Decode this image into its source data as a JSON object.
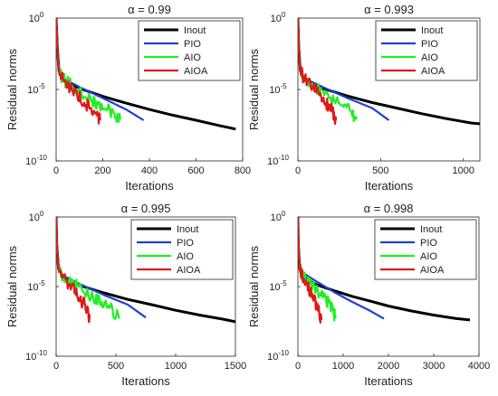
{
  "chart_data": [
    {
      "type": "line",
      "title": "α = 0.99",
      "xlabel": "Iterations",
      "ylabel": "Residual norms",
      "xlim": [
        0,
        800
      ],
      "xticks": [
        0,
        200,
        400,
        600,
        800
      ],
      "ylim_log10": [
        -10,
        0
      ],
      "yscale": "log",
      "ytick_base": "10",
      "ytick_exponents": [
        "0",
        "-5",
        "-10"
      ],
      "legend_position": "top-right",
      "series": [
        {
          "name": "Inout",
          "color": "#000000",
          "points": [
            [
              0,
              1
            ],
            [
              5,
              0.01
            ],
            [
              12,
              0.0002
            ],
            [
              30,
              5e-05
            ],
            [
              100,
              1.2e-05
            ],
            [
              200,
              3.3e-06
            ],
            [
              300,
              1.1e-06
            ],
            [
              400,
              4e-07
            ],
            [
              500,
              1.6e-07
            ],
            [
              600,
              7e-08
            ],
            [
              700,
              3e-08
            ],
            [
              770,
              1.7e-08
            ]
          ]
        },
        {
          "name": "PIO",
          "color": "#1f3fd4",
          "points": [
            [
              0,
              1
            ],
            [
              5,
              0.01
            ],
            [
              12,
              0.0002
            ],
            [
              30,
              6e-05
            ],
            [
              100,
              1.5e-05
            ],
            [
              200,
              2.5e-06
            ],
            [
              300,
              4e-07
            ],
            [
              375,
              7e-08
            ]
          ]
        },
        {
          "name": "AIO",
          "color": "#22ee22",
          "points": [
            [
              0,
              1
            ],
            [
              5,
              0.01
            ],
            [
              12,
              0.0002
            ],
            [
              30,
              5e-05
            ],
            [
              70,
              1.8e-05
            ],
            [
              110,
              4e-06
            ],
            [
              150,
              1.6e-06
            ],
            [
              180,
              9e-07
            ],
            [
              220,
              4e-07
            ],
            [
              250,
              2e-07
            ],
            [
              275,
              8e-08
            ]
          ]
        },
        {
          "name": "AIOA",
          "color": "#e01818",
          "points": [
            [
              0,
              1
            ],
            [
              5,
              0.01
            ],
            [
              12,
              0.0002
            ],
            [
              30,
              5e-05
            ],
            [
              60,
              1.5e-05
            ],
            [
              90,
              4e-06
            ],
            [
              120,
              1.2e-06
            ],
            [
              150,
              5e-07
            ],
            [
              175,
              1.5e-07
            ],
            [
              190,
              7e-08
            ]
          ]
        }
      ]
    },
    {
      "type": "line",
      "title": "α = 0.993",
      "xlabel": "Iterations",
      "ylabel": "Residual norms",
      "xlim": [
        0,
        1100
      ],
      "xticks": [
        0,
        500,
        1000
      ],
      "ylim_log10": [
        -10,
        0
      ],
      "yscale": "log",
      "ytick_base": "10",
      "ytick_exponents": [
        "0",
        "-5",
        "-10"
      ],
      "legend_position": "top-right",
      "series": [
        {
          "name": "Inout",
          "color": "#000000",
          "points": [
            [
              0,
              1
            ],
            [
              5,
              0.01
            ],
            [
              15,
              0.0002
            ],
            [
              40,
              5e-05
            ],
            [
              150,
              1.2e-05
            ],
            [
              300,
              3.5e-06
            ],
            [
              450,
              1.2e-06
            ],
            [
              600,
              5e-07
            ],
            [
              750,
              2e-07
            ],
            [
              900,
              9e-08
            ],
            [
              1050,
              4.5e-08
            ],
            [
              1100,
              4e-08
            ]
          ]
        },
        {
          "name": "PIO",
          "color": "#1f3fd4",
          "points": [
            [
              0,
              1
            ],
            [
              5,
              0.01
            ],
            [
              15,
              0.0002
            ],
            [
              40,
              6e-05
            ],
            [
              150,
              1.5e-05
            ],
            [
              300,
              2.5e-06
            ],
            [
              450,
              5e-07
            ],
            [
              550,
              7e-08
            ]
          ]
        },
        {
          "name": "AIO",
          "color": "#22ee22",
          "points": [
            [
              0,
              1
            ],
            [
              5,
              0.01
            ],
            [
              15,
              0.0002
            ],
            [
              40,
              5e-05
            ],
            [
              100,
              1.8e-05
            ],
            [
              160,
              4e-06
            ],
            [
              220,
              1.6e-06
            ],
            [
              270,
              8e-07
            ],
            [
              320,
              3e-07
            ],
            [
              355,
              8e-08
            ]
          ]
        },
        {
          "name": "AIOA",
          "color": "#e01818",
          "points": [
            [
              0,
              1
            ],
            [
              5,
              0.01
            ],
            [
              15,
              0.0002
            ],
            [
              40,
              5e-05
            ],
            [
              90,
              1.5e-05
            ],
            [
              130,
              4e-06
            ],
            [
              170,
              1.2e-06
            ],
            [
              200,
              5e-07
            ],
            [
              220,
              1.5e-07
            ],
            [
              230,
              7e-08
            ]
          ]
        }
      ]
    },
    {
      "type": "line",
      "title": "α = 0.995",
      "xlabel": "Iterations",
      "ylabel": "Residual norms",
      "xlim": [
        0,
        1500
      ],
      "xticks": [
        0,
        500,
        1000,
        1500
      ],
      "ylim_log10": [
        -10,
        0
      ],
      "yscale": "log",
      "ytick_base": "10",
      "ytick_exponents": [
        "0",
        "-5",
        "-10"
      ],
      "legend_position": "top-right",
      "series": [
        {
          "name": "Inout",
          "color": "#000000",
          "points": [
            [
              0,
              1
            ],
            [
              5,
              0.01
            ],
            [
              20,
              0.0002
            ],
            [
              60,
              5e-05
            ],
            [
              200,
              1.2e-05
            ],
            [
              400,
              3.5e-06
            ],
            [
              600,
              1.2e-06
            ],
            [
              800,
              5e-07
            ],
            [
              1000,
              2e-07
            ],
            [
              1200,
              9e-08
            ],
            [
              1400,
              4.5e-08
            ],
            [
              1500,
              3e-08
            ]
          ]
        },
        {
          "name": "PIO",
          "color": "#1f3fd4",
          "points": [
            [
              0,
              1
            ],
            [
              5,
              0.01
            ],
            [
              20,
              0.0002
            ],
            [
              60,
              6e-05
            ],
            [
              200,
              1.5e-05
            ],
            [
              400,
              2.5e-06
            ],
            [
              600,
              5e-07
            ],
            [
              750,
              6e-08
            ]
          ]
        },
        {
          "name": "AIO",
          "color": "#22ee22",
          "points": [
            [
              0,
              1
            ],
            [
              5,
              0.01
            ],
            [
              20,
              0.0002
            ],
            [
              60,
              5e-05
            ],
            [
              150,
              1.8e-05
            ],
            [
              230,
              4e-06
            ],
            [
              310,
              1.6e-06
            ],
            [
              380,
              8e-07
            ],
            [
              450,
              3e-07
            ],
            [
              530,
              5e-08
            ]
          ]
        },
        {
          "name": "AIOA",
          "color": "#e01818",
          "points": [
            [
              0,
              1
            ],
            [
              5,
              0.01
            ],
            [
              20,
              0.0002
            ],
            [
              60,
              5e-05
            ],
            [
              110,
              1.5e-05
            ],
            [
              160,
              4e-06
            ],
            [
              200,
              1.2e-06
            ],
            [
              240,
              5e-07
            ],
            [
              265,
              1.5e-07
            ],
            [
              280,
              5e-08
            ]
          ]
        }
      ]
    },
    {
      "type": "line",
      "title": "α = 0.998",
      "xlabel": "Iterations",
      "ylabel": "Residual norms",
      "xlim": [
        0,
        4000
      ],
      "xticks": [
        0,
        1000,
        2000,
        3000,
        4000
      ],
      "ylim_log10": [
        -10,
        0
      ],
      "yscale": "log",
      "ytick_base": "10",
      "ytick_exponents": [
        "0",
        "-5",
        "-10"
      ],
      "legend_position": "top-right",
      "series": [
        {
          "name": "Inout",
          "color": "#000000",
          "points": [
            [
              0,
              1
            ],
            [
              10,
              0.01
            ],
            [
              40,
              0.0002
            ],
            [
              120,
              5e-05
            ],
            [
              400,
              1.4e-05
            ],
            [
              800,
              5e-06
            ],
            [
              1200,
              2e-06
            ],
            [
              1600,
              9e-07
            ],
            [
              2000,
              4e-07
            ],
            [
              2500,
              1.8e-07
            ],
            [
              3000,
              9e-08
            ],
            [
              3500,
              5e-08
            ],
            [
              3800,
              4e-08
            ]
          ]
        },
        {
          "name": "PIO",
          "color": "#1f3fd4",
          "points": [
            [
              0,
              1
            ],
            [
              10,
              0.01
            ],
            [
              40,
              0.0002
            ],
            [
              100,
              0.0001
            ],
            [
              400,
              2.5e-05
            ],
            [
              800,
              4e-06
            ],
            [
              1200,
              8e-07
            ],
            [
              1600,
              1.8e-07
            ],
            [
              1900,
              5e-08
            ]
          ]
        },
        {
          "name": "AIO",
          "color": "#22ee22",
          "points": [
            [
              0,
              1
            ],
            [
              10,
              0.01
            ],
            [
              40,
              0.0002
            ],
            [
              120,
              5e-05
            ],
            [
              250,
              1.8e-05
            ],
            [
              400,
              5e-06
            ],
            [
              550,
              1.8e-06
            ],
            [
              680,
              7e-07
            ],
            [
              780,
              2e-07
            ],
            [
              830,
              5e-08
            ]
          ]
        },
        {
          "name": "AIOA",
          "color": "#e01818",
          "points": [
            [
              0,
              1
            ],
            [
              10,
              0.01
            ],
            [
              40,
              0.0002
            ],
            [
              100,
              5e-05
            ],
            [
              200,
              1.5e-05
            ],
            [
              280,
              4e-06
            ],
            [
              350,
              1.2e-06
            ],
            [
              420,
              4e-07
            ],
            [
              470,
              1.2e-07
            ],
            [
              520,
              4e-08
            ]
          ]
        }
      ]
    }
  ]
}
